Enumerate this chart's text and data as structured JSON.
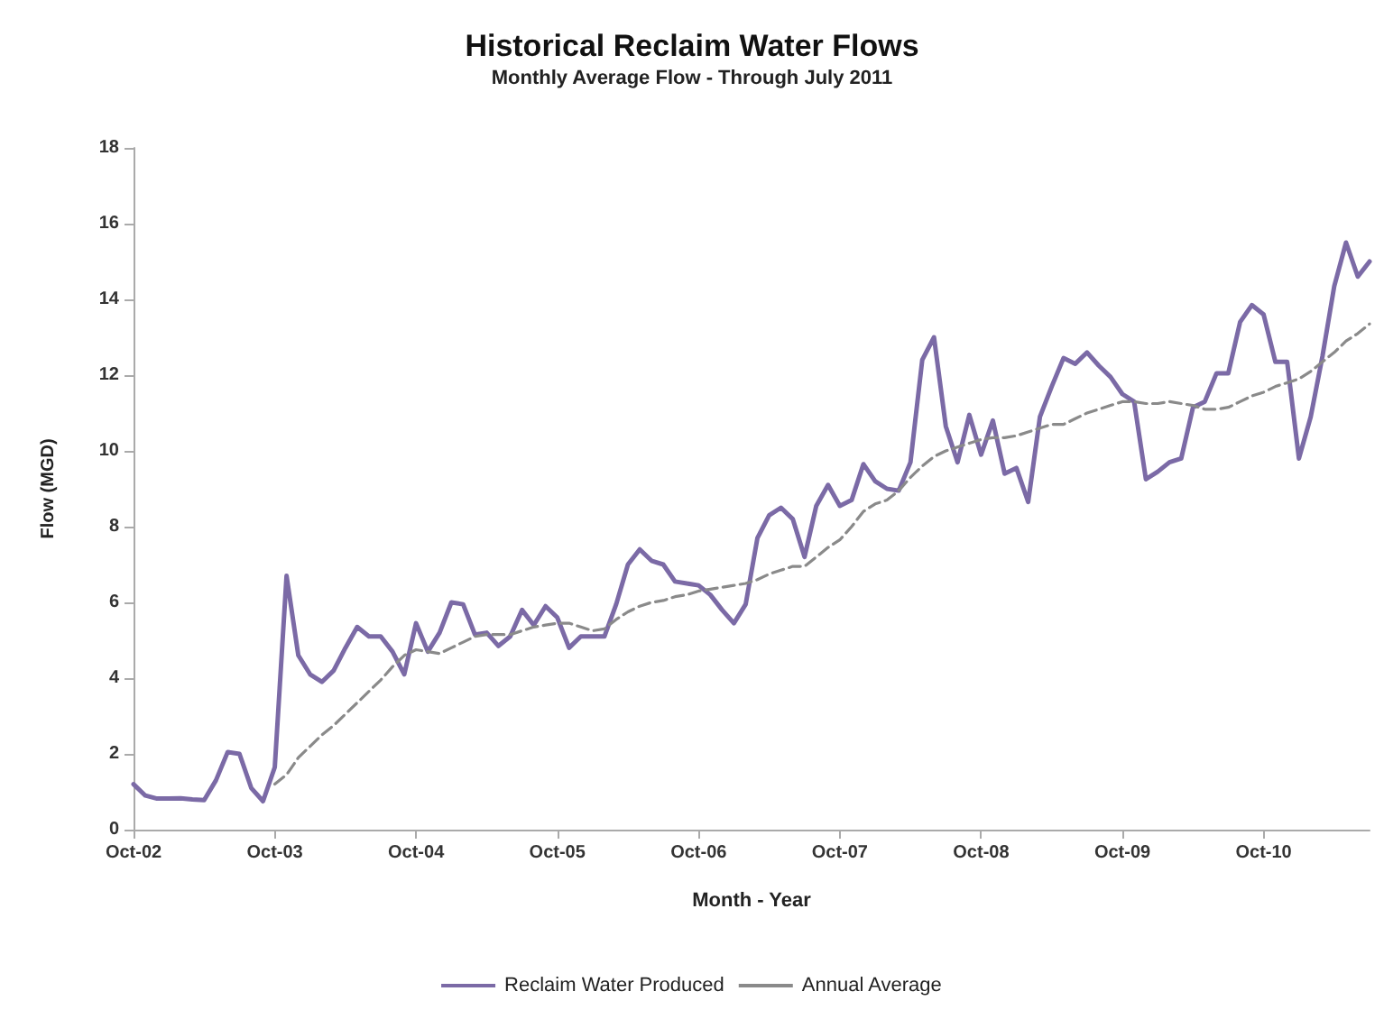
{
  "chart_data": {
    "type": "line",
    "title": "Historical Reclaim Water Flows",
    "subtitle": "Monthly Average Flow - Through July 2011",
    "xlabel": "Month - Year",
    "ylabel": "Flow (MGD)",
    "categories": [
      "Oct-02",
      null,
      null,
      null,
      null,
      null,
      null,
      null,
      null,
      null,
      null,
      null,
      "Oct-03",
      null,
      null,
      null,
      null,
      null,
      null,
      null,
      null,
      null,
      null,
      null,
      "Oct-04",
      null,
      null,
      null,
      null,
      null,
      null,
      null,
      null,
      null,
      null,
      null,
      "Oct-05",
      null,
      null,
      null,
      null,
      null,
      null,
      null,
      null,
      null,
      null,
      null,
      "Oct-06",
      null,
      null,
      null,
      null,
      null,
      null,
      null,
      null,
      null,
      null,
      null,
      "Oct-07",
      null,
      null,
      null,
      null,
      null,
      null,
      null,
      null,
      null,
      null,
      null,
      "Oct-08",
      null,
      null,
      null,
      null,
      null,
      null,
      null,
      null,
      null,
      null,
      null,
      "Oct-09",
      null,
      null,
      null,
      null,
      null,
      null,
      null,
      null,
      null,
      null,
      null,
      "Oct-10",
      null,
      null,
      null,
      null,
      null,
      null,
      null,
      null,
      null
    ],
    "series": [
      {
        "name": "Reclaim Water Produced",
        "color": "#7b6aa6",
        "line_style": "solid",
        "values": [
          1.2,
          0.9,
          0.82,
          0.82,
          0.83,
          0.8,
          0.78,
          1.3,
          2.05,
          2.0,
          1.1,
          0.75,
          1.65,
          6.7,
          4.6,
          4.1,
          3.9,
          4.2,
          4.8,
          5.35,
          5.1,
          5.1,
          4.7,
          4.1,
          5.45,
          4.7,
          5.2,
          6.0,
          5.95,
          5.15,
          5.2,
          4.85,
          5.1,
          5.8,
          5.4,
          5.9,
          5.6,
          4.8,
          5.1,
          5.1,
          5.1,
          5.95,
          7.0,
          7.4,
          7.1,
          7.0,
          6.55,
          6.5,
          6.45,
          6.2,
          5.8,
          5.45,
          5.95,
          7.7,
          8.3,
          8.5,
          8.2,
          7.2,
          8.55,
          9.1,
          8.55,
          8.7,
          9.65,
          9.2,
          9.0,
          8.95,
          9.7,
          12.4,
          13.0,
          10.65,
          9.7,
          10.95,
          9.9,
          10.8,
          9.4,
          9.55,
          8.65,
          10.9,
          11.7,
          12.45,
          12.3,
          12.6,
          12.25,
          11.95,
          11.5,
          11.3,
          9.25,
          9.45,
          9.7,
          9.8,
          11.15,
          11.3,
          12.05,
          12.05,
          13.4,
          13.85,
          13.6,
          12.35,
          12.35,
          9.8,
          10.9,
          12.5,
          14.35,
          15.5,
          14.6,
          15.0
        ]
      },
      {
        "name": "Annual Average",
        "color": "#8a8a8a",
        "line_style": "dashed",
        "values": [
          null,
          null,
          null,
          null,
          null,
          null,
          null,
          null,
          null,
          null,
          null,
          null,
          1.2,
          1.45,
          1.9,
          2.2,
          2.5,
          2.75,
          3.05,
          3.35,
          3.65,
          3.95,
          4.3,
          4.6,
          4.75,
          4.7,
          4.65,
          4.8,
          4.95,
          5.1,
          5.15,
          5.15,
          5.15,
          5.25,
          5.35,
          5.4,
          5.45,
          5.45,
          5.35,
          5.25,
          5.3,
          5.55,
          5.75,
          5.9,
          6.0,
          6.05,
          6.15,
          6.2,
          6.3,
          6.35,
          6.4,
          6.45,
          6.5,
          6.6,
          6.75,
          6.85,
          6.95,
          6.95,
          7.2,
          7.45,
          7.65,
          8.0,
          8.4,
          8.6,
          8.7,
          8.95,
          9.3,
          9.6,
          9.85,
          10.0,
          10.1,
          10.2,
          10.3,
          10.35,
          10.35,
          10.4,
          10.5,
          10.6,
          10.7,
          10.7,
          10.85,
          11.0,
          11.1,
          11.2,
          11.3,
          11.3,
          11.25,
          11.25,
          11.3,
          11.25,
          11.2,
          11.1,
          11.1,
          11.15,
          11.3,
          11.45,
          11.55,
          11.7,
          11.8,
          11.9,
          12.1,
          12.35,
          12.6,
          12.9,
          13.1,
          13.35
        ]
      }
    ],
    "ylim": [
      0,
      18
    ],
    "yticks": [
      0,
      2,
      4,
      6,
      8,
      10,
      12,
      14,
      16,
      18
    ],
    "grid": false,
    "legend": "bottom",
    "marker": "none"
  }
}
